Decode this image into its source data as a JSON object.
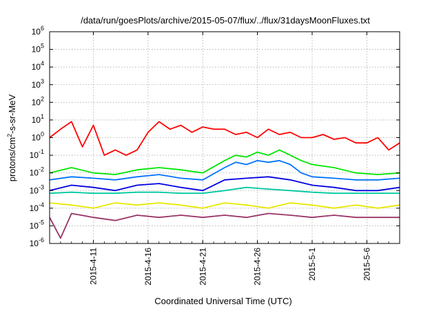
{
  "chart_data": {
    "type": "line",
    "title": "/data/run/goesPlots/archive/2015-05-07/flux/../flux/31daysMoonFluxes.txt",
    "xlabel": "Coordinated Universal Time (UTC)",
    "ylabel": "protons/cm²-s-sr-MeV",
    "ylabel_parts": {
      "base": "protons/cm",
      "exp": "2",
      "rest": "-s-sr-MeV"
    },
    "yscale": "log",
    "ylim_exp": [
      -6,
      6
    ],
    "ytick_base": "10",
    "yticks_exp": [
      "-6",
      "-5",
      "-4",
      "-3",
      "-2",
      "-1",
      "0",
      "1",
      "2",
      "3",
      "4",
      "5",
      "6"
    ],
    "xlim": [
      "2015-04-07",
      "2015-05-09"
    ],
    "xticks": [
      "2015-4-11",
      "2015-4-16",
      "2015-4-21",
      "2015-4-26",
      "2015-5-1",
      "2015-5-6"
    ],
    "grid": true,
    "series": [
      {
        "color": "#ff0000",
        "x": [
          "2015-04-07",
          "2015-04-08",
          "2015-04-09",
          "2015-04-10",
          "2015-04-11",
          "2015-04-12",
          "2015-04-13",
          "2015-04-14",
          "2015-04-15",
          "2015-04-16",
          "2015-04-17",
          "2015-04-18",
          "2015-04-19",
          "2015-04-20",
          "2015-04-21",
          "2015-04-22",
          "2015-04-23",
          "2015-04-24",
          "2015-04-25",
          "2015-04-26",
          "2015-04-27",
          "2015-04-28",
          "2015-04-29",
          "2015-04-30",
          "2015-05-01",
          "2015-05-02",
          "2015-05-03",
          "2015-05-04",
          "2015-05-05",
          "2015-05-06",
          "2015-05-07",
          "2015-05-08",
          "2015-05-09"
        ],
        "y": [
          1.0,
          3.0,
          8.0,
          0.3,
          5.0,
          0.1,
          0.2,
          0.1,
          0.2,
          2.0,
          8.0,
          3.0,
          5.0,
          2.0,
          4.0,
          3.0,
          3.0,
          1.5,
          2.0,
          1.0,
          3.0,
          1.5,
          2.0,
          1.0,
          1.0,
          1.5,
          0.8,
          1.0,
          0.5,
          0.5,
          1.0,
          0.2,
          0.5
        ]
      },
      {
        "color": "#00e600",
        "x": [
          "2015-04-07",
          "2015-04-09",
          "2015-04-11",
          "2015-04-13",
          "2015-04-15",
          "2015-04-17",
          "2015-04-19",
          "2015-04-21",
          "2015-04-23",
          "2015-04-24",
          "2015-04-25",
          "2015-04-26",
          "2015-04-27",
          "2015-04-28",
          "2015-04-29",
          "2015-04-30",
          "2015-05-01",
          "2015-05-03",
          "2015-05-05",
          "2015-05-07",
          "2015-05-09"
        ],
        "y": [
          0.01,
          0.02,
          0.01,
          0.008,
          0.015,
          0.02,
          0.015,
          0.01,
          0.05,
          0.1,
          0.08,
          0.15,
          0.1,
          0.2,
          0.1,
          0.05,
          0.03,
          0.02,
          0.01,
          0.008,
          0.01
        ]
      },
      {
        "color": "#0072ff",
        "x": [
          "2015-04-07",
          "2015-04-09",
          "2015-04-11",
          "2015-04-13",
          "2015-04-15",
          "2015-04-17",
          "2015-04-19",
          "2015-04-21",
          "2015-04-23",
          "2015-04-24",
          "2015-04-25",
          "2015-04-26",
          "2015-04-27",
          "2015-04-28",
          "2015-04-29",
          "2015-04-30",
          "2015-05-01",
          "2015-05-03",
          "2015-05-05",
          "2015-05-07",
          "2015-05-09"
        ],
        "y": [
          0.004,
          0.006,
          0.005,
          0.004,
          0.006,
          0.008,
          0.005,
          0.004,
          0.02,
          0.04,
          0.03,
          0.05,
          0.04,
          0.05,
          0.03,
          0.01,
          0.006,
          0.005,
          0.004,
          0.004,
          0.005
        ]
      },
      {
        "color": "#0000e0",
        "x": [
          "2015-04-07",
          "2015-04-09",
          "2015-04-11",
          "2015-04-13",
          "2015-04-15",
          "2015-04-17",
          "2015-04-19",
          "2015-04-21",
          "2015-04-23",
          "2015-04-25",
          "2015-04-27",
          "2015-04-29",
          "2015-05-01",
          "2015-05-03",
          "2015-05-05",
          "2015-05-07",
          "2015-05-09"
        ],
        "y": [
          0.001,
          0.002,
          0.0015,
          0.001,
          0.002,
          0.0025,
          0.0015,
          0.001,
          0.004,
          0.005,
          0.006,
          0.004,
          0.002,
          0.0015,
          0.001,
          0.001,
          0.0015
        ]
      },
      {
        "color": "#00c8a0",
        "x": [
          "2015-04-07",
          "2015-04-09",
          "2015-04-11",
          "2015-04-13",
          "2015-04-15",
          "2015-04-17",
          "2015-04-19",
          "2015-04-21",
          "2015-04-23",
          "2015-04-25",
          "2015-04-27",
          "2015-04-29",
          "2015-05-01",
          "2015-05-03",
          "2015-05-05",
          "2015-05-07",
          "2015-05-09"
        ],
        "y": [
          0.0007,
          0.0008,
          0.0007,
          0.0007,
          0.0008,
          0.0008,
          0.0007,
          0.0007,
          0.001,
          0.0015,
          0.0012,
          0.001,
          0.0008,
          0.0007,
          0.0007,
          0.0007,
          0.0007
        ]
      },
      {
        "color": "#e8e800",
        "x": [
          "2015-04-07",
          "2015-04-09",
          "2015-04-11",
          "2015-04-13",
          "2015-04-15",
          "2015-04-17",
          "2015-04-19",
          "2015-04-21",
          "2015-04-23",
          "2015-04-25",
          "2015-04-27",
          "2015-04-29",
          "2015-05-01",
          "2015-05-03",
          "2015-05-05",
          "2015-05-07",
          "2015-05-09"
        ],
        "y": [
          0.0002,
          0.00015,
          0.0001,
          0.0002,
          0.00015,
          0.0002,
          0.00015,
          0.0001,
          0.0002,
          0.00015,
          0.0001,
          0.0002,
          0.00015,
          0.0001,
          0.00015,
          0.0001,
          0.00015
        ]
      },
      {
        "color": "#993366",
        "x": [
          "2015-04-07",
          "2015-04-08",
          "2015-04-09",
          "2015-04-11",
          "2015-04-13",
          "2015-04-15",
          "2015-04-17",
          "2015-04-19",
          "2015-04-21",
          "2015-04-23",
          "2015-04-25",
          "2015-04-27",
          "2015-04-29",
          "2015-05-01",
          "2015-05-03",
          "2015-05-05",
          "2015-05-07",
          "2015-05-09"
        ],
        "y": [
          3e-05,
          2e-06,
          5e-05,
          3e-05,
          2e-05,
          4e-05,
          3e-05,
          4e-05,
          3e-05,
          4e-05,
          3e-05,
          5e-05,
          4e-05,
          3e-05,
          4e-05,
          3e-05,
          3e-05,
          3e-05
        ]
      }
    ]
  }
}
